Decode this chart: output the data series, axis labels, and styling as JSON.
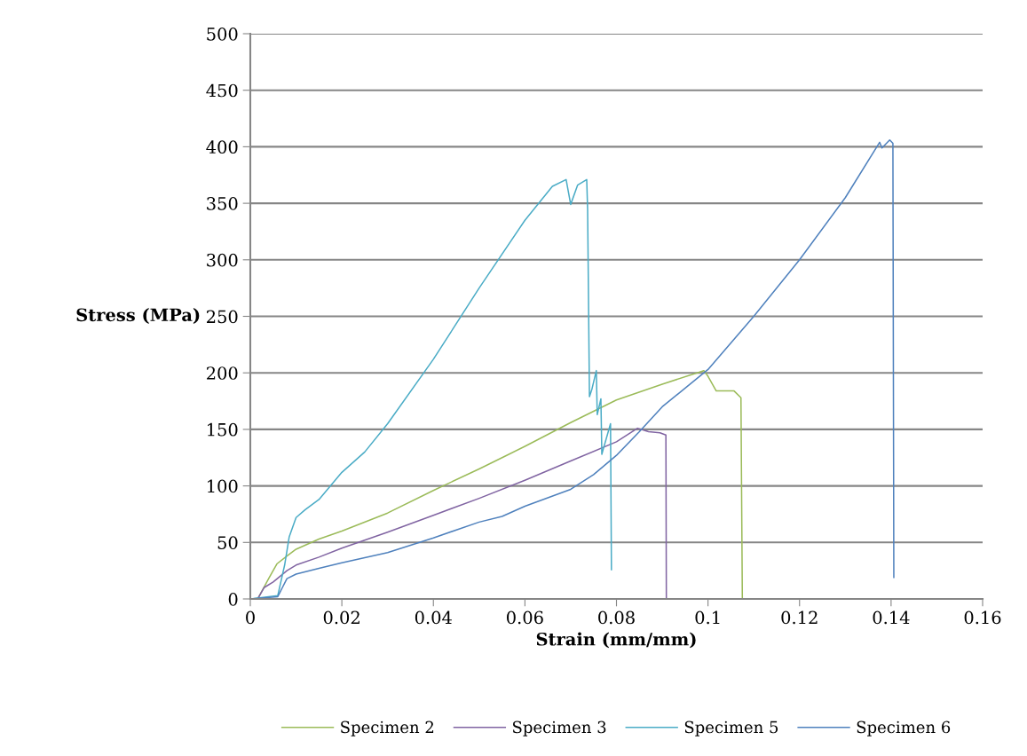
{
  "chart_data": {
    "type": "line",
    "xlabel": "Strain (mm/mm)",
    "ylabel": "Stress (MPa)",
    "xlim": [
      0,
      0.16
    ],
    "xticks": [
      0,
      0.02,
      0.04,
      0.06,
      0.08,
      0.1,
      0.12,
      0.14,
      0.16
    ],
    "ylim": [
      0,
      500
    ],
    "yticks": [
      0,
      50,
      100,
      150,
      200,
      250,
      300,
      350,
      400,
      450,
      500
    ],
    "grid": "y",
    "legend": "bottom",
    "marker": "none",
    "line_style": "solid",
    "series": [
      {
        "name": "Specimen 2",
        "color": "#9bbb59",
        "x": [
          0,
          0.0016,
          0.004,
          0.0058,
          0.008,
          0.01,
          0.015,
          0.02,
          0.03,
          0.04,
          0.05,
          0.056,
          0.06,
          0.07,
          0.08,
          0.09,
          0.0991,
          0.1,
          0.1018,
          0.1057,
          0.1072,
          0.1075
        ],
        "values": [
          0,
          0,
          18,
          31,
          38,
          44,
          53,
          60,
          76,
          96,
          115,
          127,
          135,
          156,
          176,
          190,
          202,
          197,
          184,
          184,
          178,
          0
        ]
      },
      {
        "name": "Specimen 3",
        "color": "#8064a2",
        "x": [
          0,
          0.0016,
          0.003,
          0.005,
          0.008,
          0.01,
          0.015,
          0.02,
          0.03,
          0.04,
          0.05,
          0.06,
          0.07,
          0.08,
          0.0846,
          0.087,
          0.0895,
          0.0908,
          0.0909
        ],
        "values": [
          0,
          0,
          10,
          15,
          25,
          30,
          37,
          45,
          59,
          74,
          89,
          105,
          122,
          139,
          151,
          148,
          147,
          145,
          0
        ]
      },
      {
        "name": "Specimen 5",
        "color": "#4bacc6",
        "x": [
          0,
          0.006,
          0.0075,
          0.0085,
          0.01,
          0.012,
          0.015,
          0.02,
          0.025,
          0.03,
          0.04,
          0.05,
          0.06,
          0.066,
          0.069,
          0.07,
          0.0715,
          0.0735,
          0.0737,
          0.0741,
          0.0746,
          0.0756,
          0.0758,
          0.0766,
          0.0768,
          0.0787,
          0.0789
        ],
        "values": [
          0,
          3,
          30,
          55,
          72,
          79,
          88,
          112,
          130,
          155,
          212,
          275,
          335,
          365,
          371,
          349,
          366,
          371,
          344,
          179,
          185,
          202,
          163,
          177,
          128,
          155,
          26
        ]
      },
      {
        "name": "Specimen 6",
        "color": "#4f81bd",
        "x": [
          0,
          0.006,
          0.007,
          0.008,
          0.01,
          0.015,
          0.02,
          0.03,
          0.04,
          0.05,
          0.055,
          0.06,
          0.07,
          0.075,
          0.08,
          0.085,
          0.09,
          0.1,
          0.11,
          0.12,
          0.13,
          0.1375,
          0.138,
          0.1397,
          0.1404,
          0.1406
        ],
        "values": [
          0,
          2,
          10,
          18,
          22,
          27,
          32,
          41,
          54,
          68,
          73,
          82,
          97,
          110,
          127,
          148,
          170,
          203,
          250,
          300,
          355,
          404,
          399,
          406,
          403,
          19
        ]
      }
    ]
  }
}
